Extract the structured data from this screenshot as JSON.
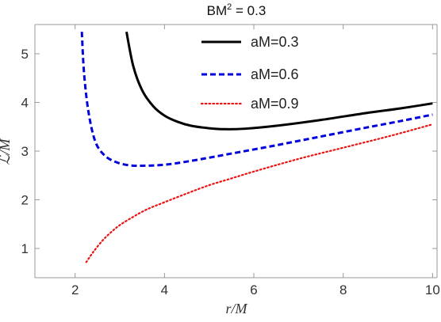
{
  "chart_data": {
    "type": "line",
    "title_prefix": "BM",
    "title_superscript": "2",
    "title_suffix": " = 0.3",
    "xlabel": "r/M",
    "ylabel": "ℒ/M",
    "xlim": [
      1.1,
      10.1
    ],
    "ylim": [
      0.4,
      5.6
    ],
    "xticks": [
      "2",
      "4",
      "6",
      "8",
      "10"
    ],
    "yticks": [
      "1",
      "2",
      "3",
      "4",
      "5"
    ],
    "legend_position": "top-center",
    "series": [
      {
        "name": "aM=0.3",
        "color": "#000000",
        "dash": "solid",
        "x": [
          3.15,
          3.3,
          3.5,
          3.75,
          4.0,
          4.3,
          4.6,
          5.0,
          5.35,
          5.8,
          6.5,
          7.5,
          8.5,
          9.3,
          10.0
        ],
        "y": [
          5.45,
          4.75,
          4.25,
          3.92,
          3.73,
          3.6,
          3.52,
          3.47,
          3.45,
          3.46,
          3.52,
          3.64,
          3.78,
          3.88,
          3.98
        ]
      },
      {
        "name": "aM=0.6",
        "color": "#0000dd",
        "dash": "dashed",
        "x": [
          2.15,
          2.2,
          2.3,
          2.45,
          2.65,
          2.9,
          3.2,
          3.5,
          4.0,
          4.6,
          5.5,
          6.5,
          7.5,
          8.5,
          9.3,
          10.0
        ],
        "y": [
          5.45,
          4.6,
          3.8,
          3.2,
          2.92,
          2.78,
          2.71,
          2.7,
          2.72,
          2.8,
          2.95,
          3.12,
          3.3,
          3.48,
          3.62,
          3.75
        ]
      },
      {
        "name": "aM=0.9",
        "color": "#ee1111",
        "dash": "dotted",
        "x": [
          2.25,
          2.4,
          2.6,
          2.8,
          3.0,
          3.3,
          3.6,
          4.0,
          4.5,
          5.0,
          5.5,
          6.0,
          7.0,
          8.0,
          9.0,
          10.0
        ],
        "y": [
          0.72,
          0.92,
          1.15,
          1.33,
          1.48,
          1.65,
          1.8,
          1.95,
          2.13,
          2.3,
          2.44,
          2.58,
          2.84,
          3.07,
          3.3,
          3.55
        ]
      }
    ]
  }
}
